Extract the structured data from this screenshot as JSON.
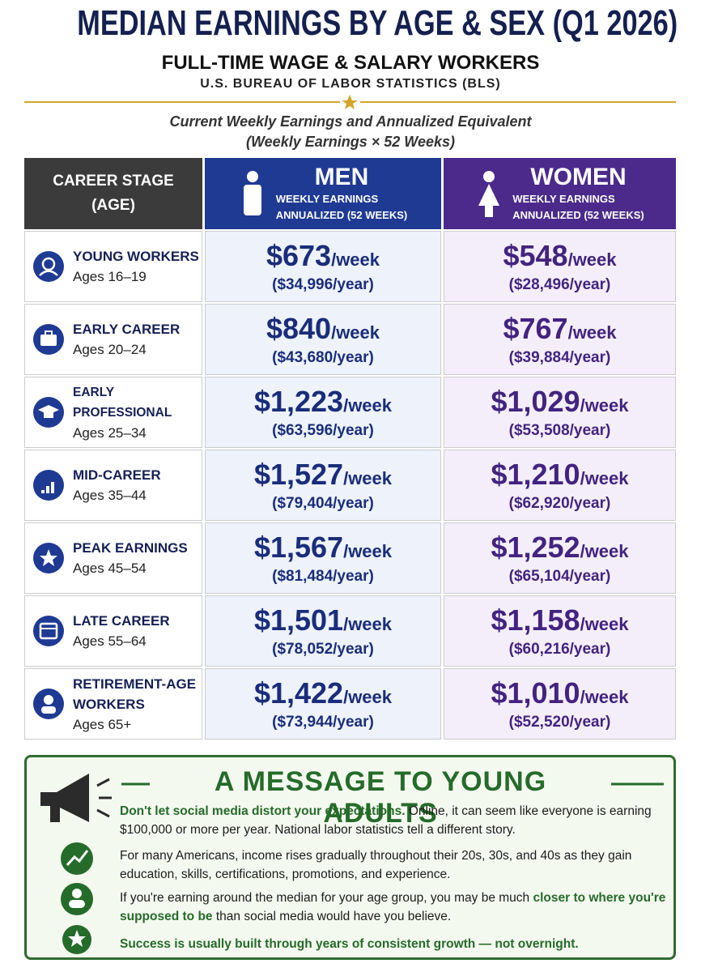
{
  "header": {
    "title": "MEDIAN EARNINGS BY AGE & SEX (Q1 2026)",
    "subtitle": "FULL-TIME WAGE & SALARY WORKERS",
    "source": "U.S. BUREAU OF LABOR STATISTICS (BLS)",
    "description": [
      "Current Weekly Earnings and Annualized Equivalent",
      "(Weekly Earnings × 52 Weeks)"
    ]
  },
  "table": {
    "columns": {
      "stage": [
        "CAREER STAGE",
        "(AGE)"
      ],
      "men": {
        "label": "MEN",
        "lines": [
          "WEEKLY EARNINGS",
          "ANNUALIZED (52 WEEKS)"
        ]
      },
      "women": {
        "label": "WOMEN",
        "lines": [
          "WEEKLY EARNINGS",
          "ANNUALIZED (52 WEEKS)"
        ]
      }
    },
    "rows": [
      {
        "stage": [
          "YOUNG WORKERS"
        ],
        "ages": "Ages 16–19",
        "men": {
          "weekly": "$673",
          "unit": "/week",
          "annual": "($34,996/year)"
        },
        "women": {
          "weekly": "$548",
          "unit": "/week",
          "annual": "($28,496/year)"
        }
      },
      {
        "stage": [
          "EARLY CAREER"
        ],
        "ages": "Ages 20–24",
        "men": {
          "weekly": "$840",
          "unit": "/week",
          "annual": "($43,680/year)"
        },
        "women": {
          "weekly": "$767",
          "unit": "/week",
          "annual": "($39,884/year)"
        }
      },
      {
        "stage": [
          "EARLY PROFESSIONAL"
        ],
        "ages": "Ages 25–34",
        "men": {
          "weekly": "$1,223",
          "unit": "/week",
          "annual": "($63,596/year)"
        },
        "women": {
          "weekly": "$1,029",
          "unit": "/week",
          "annual": "($53,508/year)"
        }
      },
      {
        "stage": [
          "MID-CAREER"
        ],
        "ages": "Ages 35–44",
        "men": {
          "weekly": "$1,527",
          "unit": "/week",
          "annual": "($79,404/year)"
        },
        "women": {
          "weekly": "$1,210",
          "unit": "/week",
          "annual": "($62,920/year)"
        }
      },
      {
        "stage": [
          "PEAK EARNINGS"
        ],
        "ages": "Ages 45–54",
        "men": {
          "weekly": "$1,567",
          "unit": "/week",
          "annual": "($81,484/year)"
        },
        "women": {
          "weekly": "$1,252",
          "unit": "/week",
          "annual": "($65,104/year)"
        }
      },
      {
        "stage": [
          "LATE CAREER"
        ],
        "ages": "Ages 55–64",
        "men": {
          "weekly": "$1,501",
          "unit": "/week",
          "annual": "($78,052/year)"
        },
        "women": {
          "weekly": "$1,158",
          "unit": "/week",
          "annual": "($60,216/year)"
        }
      },
      {
        "stage": [
          "RETIREMENT-AGE",
          "WORKERS"
        ],
        "ages": "Ages 65+",
        "men": {
          "weekly": "$1,422",
          "unit": "/week",
          "annual": "($73,944/year)"
        },
        "women": {
          "weekly": "$1,010",
          "unit": "/week",
          "annual": "($52,520/year)"
        }
      }
    ]
  },
  "message": {
    "title": "A MESSAGE TO YOUNG ADULTS",
    "paragraphs": [
      [
        {
          "text": "Don't let social media distort your expectations.",
          "style": "bold"
        },
        {
          "text": " Online, it can seem like everyone is earning $100,000 or more per year. National labor statistics tell a different story.",
          "style": "normal"
        }
      ],
      [
        {
          "text": "For many Americans, income rises gradually throughout their 20s, 30s, and 40s as they gain education, skills, certifications, promotions, and experience.",
          "style": "normal"
        }
      ],
      [
        {
          "text": "If you're earning around the median for your age group, you may be much ",
          "style": "normal"
        },
        {
          "text": "closer to where you're supposed to be",
          "style": "green-bold"
        },
        {
          "text": " than social media would have you believe.",
          "style": "normal"
        }
      ],
      [
        {
          "text": "Success is usually built through years of consistent growth — not overnight.",
          "style": "bold"
        }
      ]
    ]
  }
}
